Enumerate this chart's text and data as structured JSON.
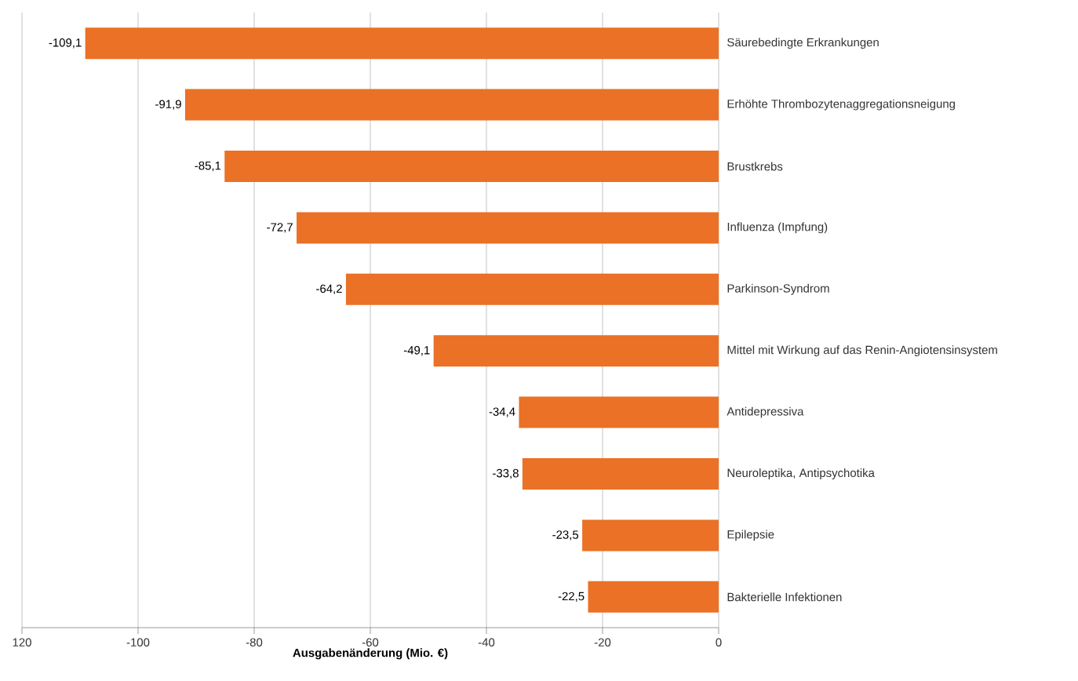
{
  "chart_data": {
    "type": "bar",
    "orientation": "horizontal",
    "categories": [
      "Säurebedingte Erkrankungen",
      "Erhöhte Thrombozytenaggregationsneigung",
      "Brustkrebs",
      "Influenza (Impfung)",
      "Parkinson-Syndrom",
      "Mittel mit Wirkung auf das Renin-Angiotensinsystem",
      "Antidepressiva",
      "Neuroleptika, Antipsychotika",
      "Epilepsie",
      "Bakterielle Infektionen"
    ],
    "values": [
      -109.1,
      -91.9,
      -85.1,
      -72.7,
      -64.2,
      -49.1,
      -34.4,
      -33.8,
      -23.5,
      -22.5
    ],
    "value_labels": [
      "-109,1",
      "-91,9",
      "-85,1",
      "-72,7",
      "-64,2",
      "-49,1",
      "-34,4",
      "-33,8",
      "-23,5",
      "-22,5"
    ],
    "color": "#ea7125",
    "xlabel": "Ausgabenänderung (Mio. €)",
    "xlim": [
      -120,
      0
    ],
    "xticks": [
      {
        "value": -120,
        "label": "120"
      },
      -100,
      -80,
      -60,
      -40,
      -20,
      0
    ],
    "grid": "x"
  }
}
